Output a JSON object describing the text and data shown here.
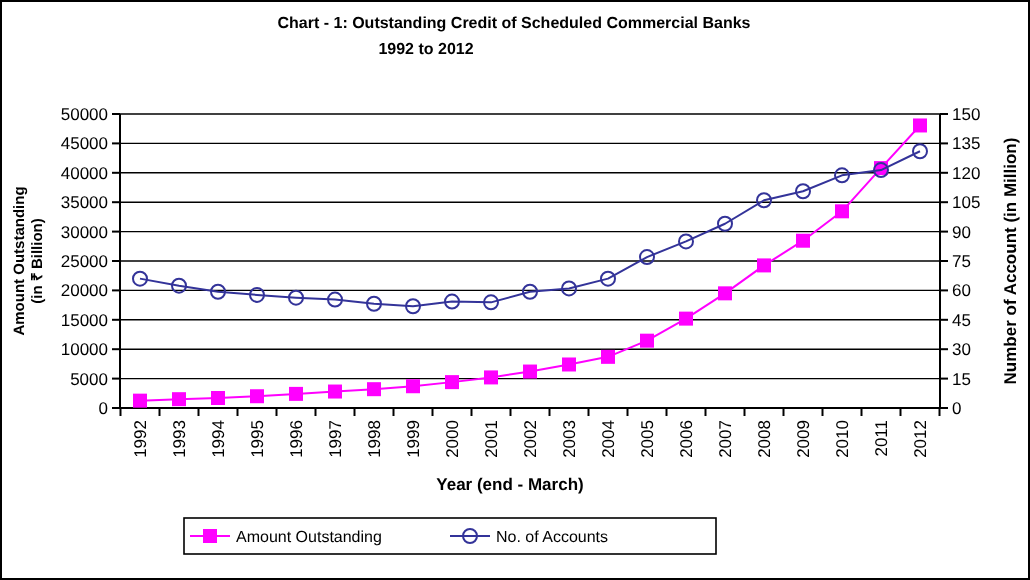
{
  "chart_data": {
    "type": "line",
    "title": "Chart - 1:   Outstanding  Credit of Scheduled Commercial Banks",
    "subtitle": "1992 to 2012",
    "xlabel": "Year (end - March)",
    "ylabel": "Amount Outstanding (in ₹ Billion)",
    "y2label": "Number of Account  (in Million)",
    "categories": [
      "1992",
      "1993",
      "1994",
      "1995",
      "1996",
      "1997",
      "1998",
      "1999",
      "2000",
      "2001",
      "2002",
      "2003",
      "2004",
      "2005",
      "2006",
      "2007",
      "2008",
      "2009",
      "2010",
      "2011",
      "2012"
    ],
    "series": [
      {
        "name": "Amount Outstanding",
        "color": "#ff00ff",
        "marker": "square",
        "values": [
          1250,
          1500,
          1700,
          2000,
          2400,
          2800,
          3200,
          3700,
          4400,
          5200,
          6200,
          7400,
          8700,
          11450,
          15200,
          19500,
          24250,
          28450,
          33450,
          40800,
          48050
        ]
      },
      {
        "name": "No. of Accounts",
        "color": "#333399",
        "marker": "circle",
        "axis": "y2",
        "values": [
          66,
          62.4,
          59.3,
          57.7,
          56.3,
          55.3,
          53.2,
          51.9,
          54.3,
          53.9,
          59.3,
          61,
          66,
          77,
          85,
          94,
          106,
          110.6,
          118.7,
          121.4,
          131
        ]
      }
    ],
    "ylim": [
      0,
      50000
    ],
    "yticks": [
      0,
      5000,
      10000,
      15000,
      20000,
      25000,
      30000,
      35000,
      40000,
      45000,
      50000
    ],
    "y2lim": [
      0,
      150
    ],
    "y2ticks": [
      0,
      15,
      30,
      45,
      60,
      75,
      90,
      105,
      120,
      135,
      150
    ],
    "grid": "y",
    "legend": "bottom"
  }
}
